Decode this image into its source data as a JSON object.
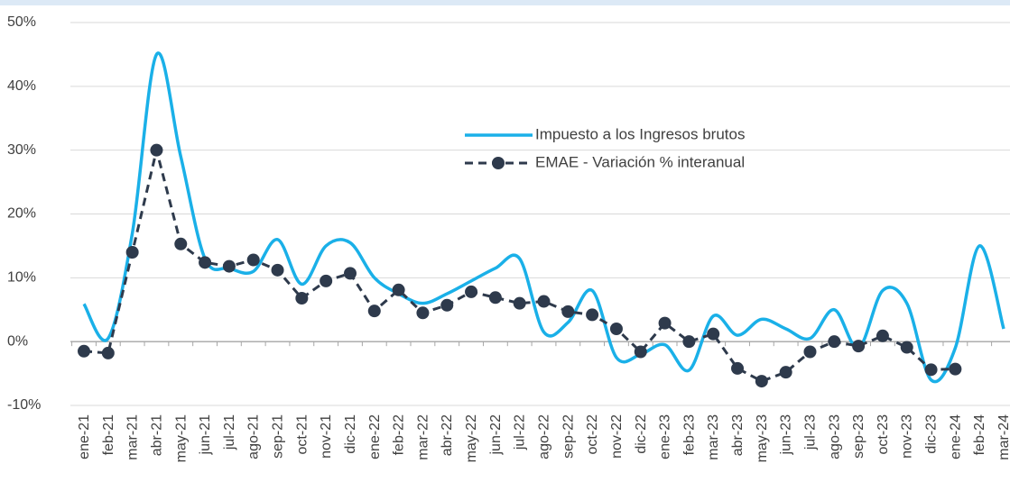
{
  "chart_data": {
    "type": "line",
    "categories": [
      "ene-21",
      "feb-21",
      "mar-21",
      "abr-21",
      "may-21",
      "jun-21",
      "jul-21",
      "ago-21",
      "sep-21",
      "oct-21",
      "nov-21",
      "dic-21",
      "ene-22",
      "feb-22",
      "mar-22",
      "abr-22",
      "may-22",
      "jun-22",
      "jul-22",
      "ago-22",
      "sep-22",
      "oct-22",
      "nov-22",
      "dic-22",
      "ene-23",
      "feb-23",
      "mar-23",
      "abr-23",
      "may-23",
      "jun-23",
      "jul-23",
      "ago-23",
      "sep-23",
      "oct-23",
      "nov-23",
      "dic-23",
      "ene-24",
      "feb-24",
      "mar-24"
    ],
    "series": [
      {
        "name": "Impuesto a los Ingresos brutos",
        "color": "#1ab0e8",
        "style": "solid",
        "values": [
          5.9,
          0.5,
          17,
          45,
          29,
          13,
          11.5,
          11,
          16,
          9,
          15,
          15.5,
          10,
          7.5,
          6,
          7.5,
          9.5,
          11.5,
          13,
          1.5,
          3,
          8,
          -2.5,
          -2,
          -0.5,
          -4.5,
          4,
          1,
          3.5,
          2,
          0.5,
          5,
          -1,
          8,
          6,
          -6,
          -1,
          15,
          2
        ]
      },
      {
        "name": "EMAE - Variación % interanual",
        "color": "#2e3a4c",
        "style": "dashed",
        "values": [
          -1.5,
          -1.8,
          14,
          30,
          15.3,
          12.4,
          11.8,
          12.8,
          11.2,
          6.8,
          9.5,
          10.7,
          4.8,
          8.1,
          4.5,
          5.7,
          7.8,
          6.9,
          6.0,
          6.3,
          4.7,
          4.2,
          2.0,
          -1.6,
          2.9,
          0,
          1.2,
          -4.2,
          -6.2,
          -4.8,
          -1.6,
          0,
          -0.7,
          0.9,
          -0.9,
          -4.4,
          -4.3,
          null,
          null
        ]
      }
    ],
    "ylim": [
      -10,
      50
    ],
    "yticks": [
      {
        "value": -10,
        "label": "-10%"
      },
      {
        "value": 0,
        "label": "0%"
      },
      {
        "value": 10,
        "label": "10%"
      },
      {
        "value": 20,
        "label": "20%"
      },
      {
        "value": 30,
        "label": "30%"
      },
      {
        "value": 40,
        "label": "40%"
      },
      {
        "value": 50,
        "label": "50%"
      }
    ],
    "grid": true
  }
}
